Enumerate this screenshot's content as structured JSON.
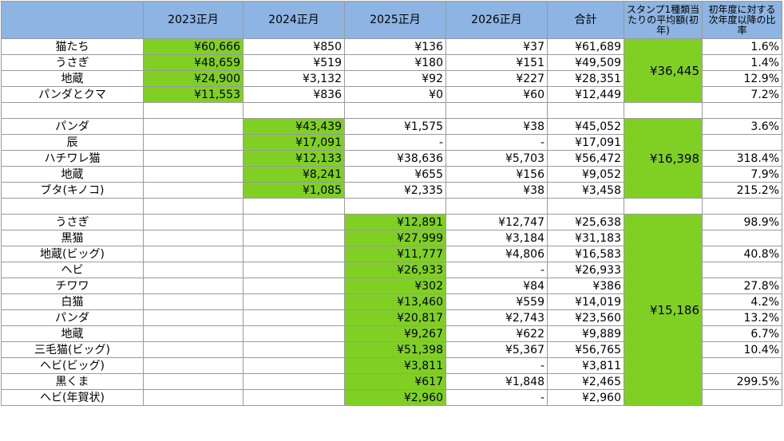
{
  "header": [
    null,
    "2023正月",
    "2024正月",
    "2025正月",
    "2026正月",
    "合計",
    "スタンプ1種類当たりの平均額(初年)",
    "初年度に対する次年度以降の比率"
  ],
  "groups": [
    {
      "rows": [
        [
          "猫たち",
          "¥60,666",
          "¥850",
          "¥136",
          "¥37",
          "¥61,689",
          "1.6%"
        ],
        [
          "うさぎ",
          "¥48,659",
          "¥519",
          "¥180",
          "¥151",
          "¥49,509",
          "1.4%"
        ],
        [
          "地蔵",
          "¥24,900",
          "¥3,132",
          "¥92",
          "¥227",
          "¥28,351",
          "12.9%"
        ],
        [
          "パンダとクマ",
          "¥11,553",
          "¥836",
          "¥0",
          "¥60",
          "¥12,449",
          "7.2%"
        ]
      ],
      "average": "¥36,445"
    },
    {
      "rows": [
        [
          "パンダ",
          null,
          "¥43,439",
          "¥1,575",
          "¥38",
          "¥45,052",
          "3.6%"
        ],
        [
          "辰",
          null,
          "¥17,091",
          "-",
          "-",
          "¥17,091",
          null
        ],
        [
          "ハチワレ猫",
          null,
          "¥12,133",
          "¥38,636",
          "¥5,703",
          "¥56,472",
          "318.4%"
        ],
        [
          "地蔵",
          null,
          "¥8,241",
          "¥655",
          "¥156",
          "¥9,052",
          "7.9%"
        ],
        [
          "ブタ(キノコ)",
          null,
          "¥1,085",
          "¥2,335",
          "¥38",
          "¥3,458",
          "215.2%"
        ]
      ],
      "average": "¥16,398"
    },
    {
      "rows": [
        [
          "うさぎ",
          null,
          null,
          "¥12,891",
          "¥12,747",
          "¥25,638",
          "98.9%"
        ],
        [
          "黒猫",
          null,
          null,
          "¥27,999",
          "¥3,184",
          "¥31,183",
          null
        ],
        [
          "地蔵(ビッグ)",
          null,
          null,
          "¥11,777",
          "¥4,806",
          "¥16,583",
          "40.8%"
        ],
        [
          "ヘビ",
          null,
          null,
          "¥26,933",
          "-",
          "¥26,933",
          null
        ],
        [
          "チワワ",
          null,
          null,
          "¥302",
          "¥84",
          "¥386",
          "27.8%"
        ],
        [
          "白猫",
          null,
          null,
          "¥13,460",
          "¥559",
          "¥14,019",
          "4.2%"
        ],
        [
          "パンダ",
          null,
          null,
          "¥20,817",
          "¥2,743",
          "¥23,560",
          "13.2%"
        ],
        [
          "地蔵",
          null,
          null,
          "¥9,267",
          "¥622",
          "¥9,889",
          "6.7%"
        ],
        [
          "三毛猫(ビッグ)",
          null,
          null,
          "¥51,398",
          "¥5,367",
          "¥56,765",
          "10.4%"
        ],
        [
          "ヘビ(ビッグ)",
          null,
          null,
          "¥3,811",
          "-",
          "¥3,811",
          null
        ],
        [
          "黒くま",
          null,
          null,
          "¥617",
          "¥1,848",
          "¥2,465",
          "299.5%"
        ],
        [
          "ヘビ(年賀状)",
          null,
          null,
          "¥2,960",
          "-",
          "¥2,960",
          null
        ]
      ],
      "average": "¥15,186"
    }
  ]
}
